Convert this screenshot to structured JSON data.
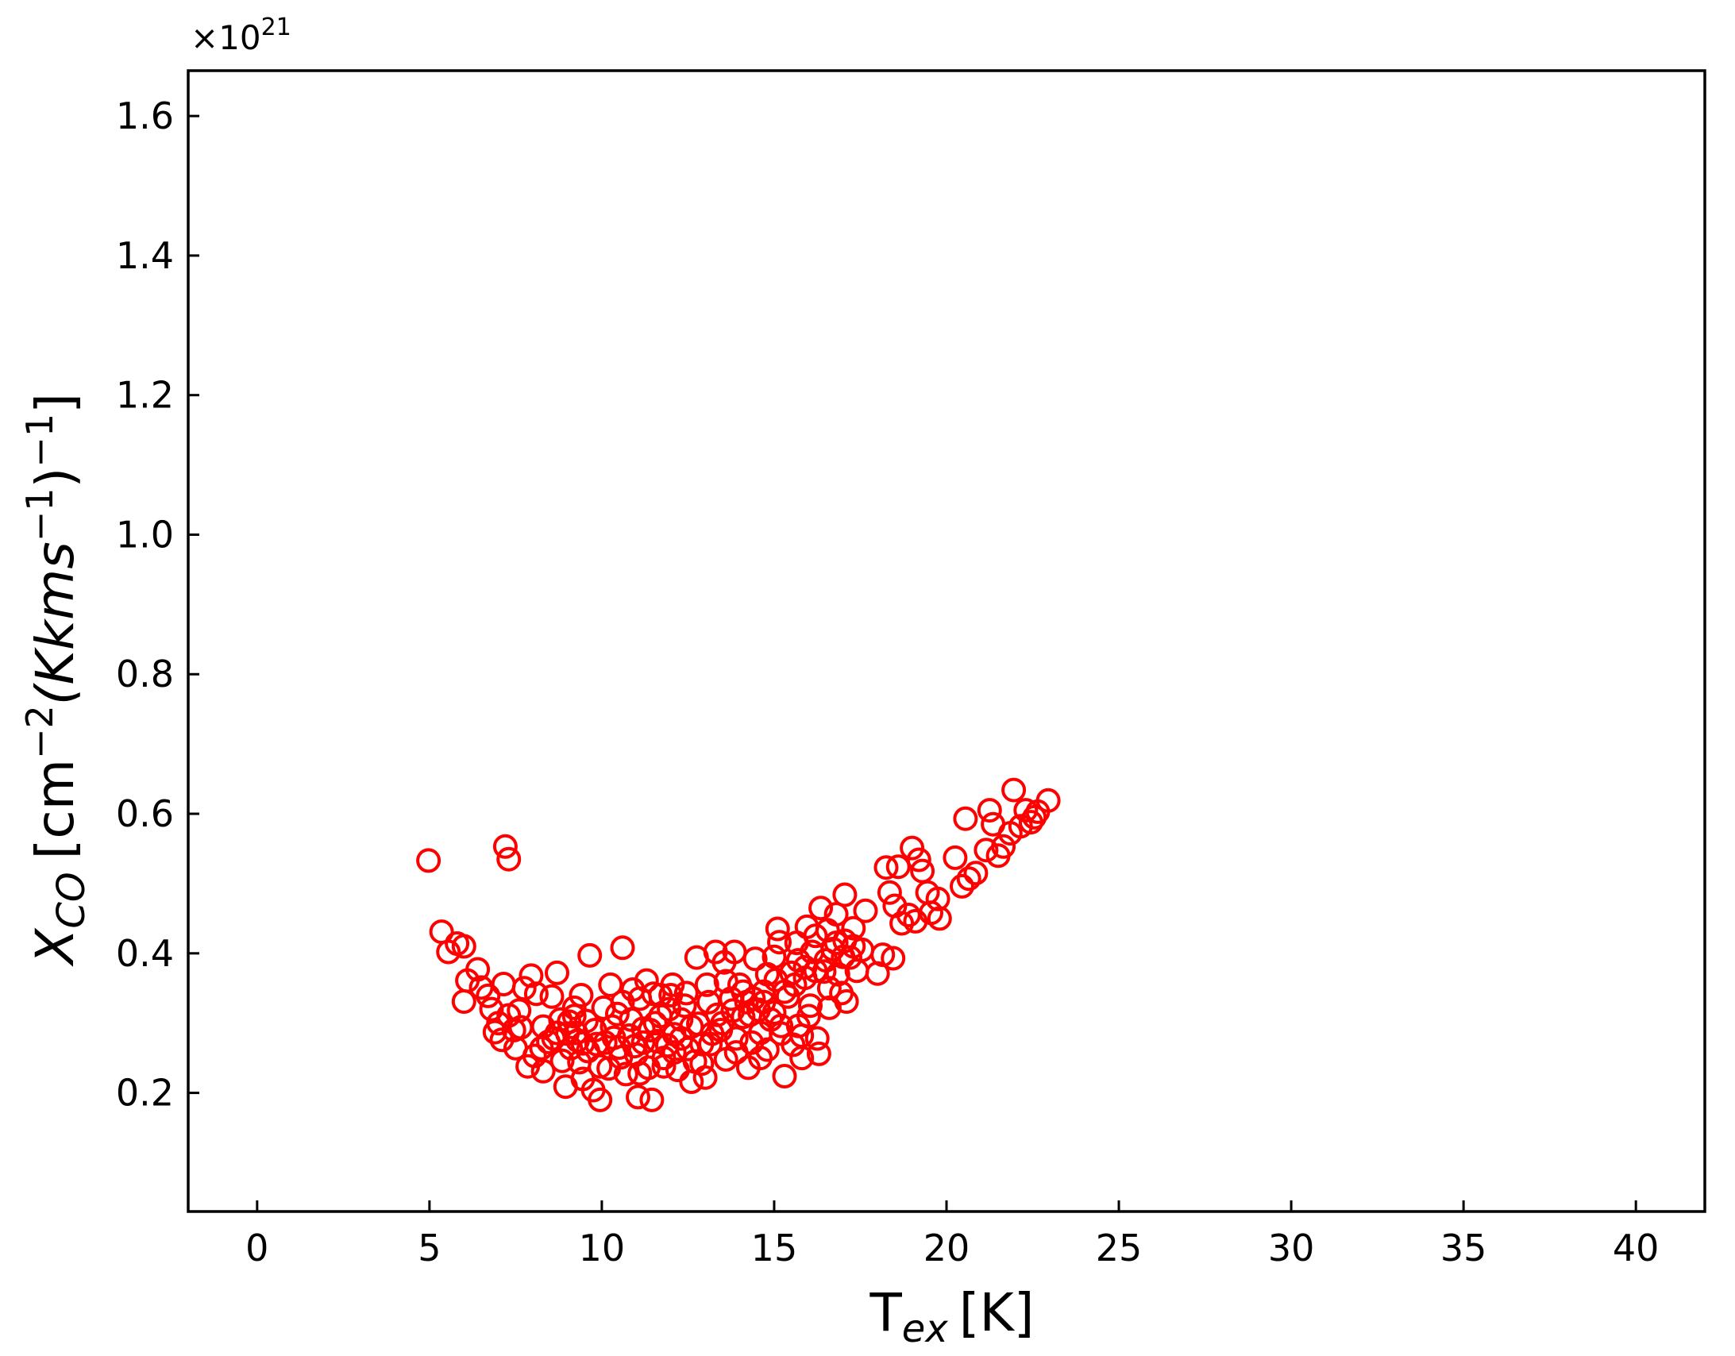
{
  "chart_data": {
    "type": "scatter",
    "title": "",
    "xlabel": "T",
    "xlabel_sub": "ex",
    "xlabel_unit": "[K]",
    "ylabel": "X",
    "ylabel_sub": "CO",
    "ylabel_unit_parts": [
      "[cm",
      "−2",
      "(Kkms",
      "−1",
      ")",
      "−1",
      "]"
    ],
    "y_offset_text": "×10",
    "y_offset_exp": "21",
    "xlim": [
      -2,
      42
    ],
    "ylim": [
      0.03,
      1.665
    ],
    "y_scale": 1e+21,
    "xticks": [
      0,
      5,
      10,
      15,
      20,
      25,
      30,
      35,
      40
    ],
    "xtick_labels": [
      "0",
      "5",
      "10",
      "15",
      "20",
      "25",
      "30",
      "35",
      "40"
    ],
    "yticks": [
      0.2,
      0.4,
      0.6,
      0.8,
      1.0,
      1.2,
      1.4,
      1.6
    ],
    "ytick_labels": [
      "0.2",
      "0.4",
      "0.6",
      "0.8",
      "1.0",
      "1.2",
      "1.4",
      "1.6"
    ],
    "grid": false,
    "marker": "open-circle",
    "marker_color": "#ff0000",
    "series": [
      {
        "points": [
          [
            4.97,
            0.533
          ],
          [
            7.2,
            0.553
          ],
          [
            7.3,
            0.535
          ],
          [
            5.35,
            0.431
          ],
          [
            5.55,
            0.402
          ],
          [
            5.8,
            0.414
          ],
          [
            6.0,
            0.41
          ],
          [
            6.1,
            0.361
          ],
          [
            6.0,
            0.331
          ],
          [
            6.4,
            0.377
          ],
          [
            6.5,
            0.351
          ],
          [
            6.7,
            0.339
          ],
          [
            6.9,
            0.287
          ],
          [
            7.1,
            0.276
          ],
          [
            7.15,
            0.356
          ],
          [
            7.3,
            0.311
          ],
          [
            7.45,
            0.29
          ],
          [
            7.5,
            0.264
          ],
          [
            7.65,
            0.294
          ],
          [
            7.75,
            0.35
          ],
          [
            7.95,
            0.368
          ],
          [
            7.85,
            0.238
          ],
          [
            8.05,
            0.253
          ],
          [
            8.25,
            0.264
          ],
          [
            8.3,
            0.231
          ],
          [
            8.45,
            0.273
          ],
          [
            8.55,
            0.338
          ],
          [
            8.7,
            0.372
          ],
          [
            8.7,
            0.286
          ],
          [
            8.85,
            0.246
          ],
          [
            8.95,
            0.209
          ],
          [
            9.05,
            0.302
          ],
          [
            9.1,
            0.264
          ],
          [
            9.2,
            0.322
          ],
          [
            9.25,
            0.286
          ],
          [
            9.35,
            0.244
          ],
          [
            9.45,
            0.271
          ],
          [
            9.45,
            0.22
          ],
          [
            9.55,
            0.303
          ],
          [
            9.65,
            0.397
          ],
          [
            9.75,
            0.204
          ],
          [
            9.85,
            0.27
          ],
          [
            9.95,
            0.238
          ],
          [
            9.95,
            0.19
          ],
          [
            10.05,
            0.322
          ],
          [
            10.25,
            0.355
          ],
          [
            10.35,
            0.279
          ],
          [
            10.45,
            0.313
          ],
          [
            10.6,
            0.408
          ],
          [
            10.55,
            0.251
          ],
          [
            10.7,
            0.227
          ],
          [
            10.85,
            0.305
          ],
          [
            10.95,
            0.267
          ],
          [
            11.05,
            0.194
          ],
          [
            11.1,
            0.335
          ],
          [
            11.2,
            0.292
          ],
          [
            11.3,
            0.361
          ],
          [
            11.35,
            0.236
          ],
          [
            11.45,
            0.19
          ],
          [
            11.55,
            0.3
          ],
          [
            11.6,
            0.274
          ],
          [
            11.7,
            0.34
          ],
          [
            11.8,
            0.25
          ],
          [
            11.95,
            0.32
          ],
          [
            12.05,
            0.355
          ],
          [
            12.1,
            0.284
          ],
          [
            12.2,
            0.233
          ],
          [
            12.3,
            0.305
          ],
          [
            12.45,
            0.343
          ],
          [
            12.5,
            0.263
          ],
          [
            12.6,
            0.216
          ],
          [
            12.75,
            0.394
          ],
          [
            12.8,
            0.299
          ],
          [
            12.9,
            0.242
          ],
          [
            13.0,
            0.222
          ],
          [
            13.05,
            0.355
          ],
          [
            13.15,
            0.27
          ],
          [
            13.3,
            0.402
          ],
          [
            13.35,
            0.312
          ],
          [
            13.45,
            0.29
          ],
          [
            13.55,
            0.387
          ],
          [
            13.6,
            0.248
          ],
          [
            13.75,
            0.335
          ],
          [
            13.85,
            0.402
          ],
          [
            13.9,
            0.278
          ],
          [
            14.0,
            0.355
          ],
          [
            14.1,
            0.309
          ],
          [
            14.2,
            0.33
          ],
          [
            14.25,
            0.236
          ],
          [
            14.35,
            0.272
          ],
          [
            14.45,
            0.392
          ],
          [
            14.55,
            0.319
          ],
          [
            14.6,
            0.286
          ],
          [
            14.7,
            0.345
          ],
          [
            14.8,
            0.262
          ],
          [
            14.9,
            0.305
          ],
          [
            15.0,
            0.395
          ],
          [
            15.05,
            0.362
          ],
          [
            15.1,
            0.435
          ],
          [
            15.15,
            0.416
          ],
          [
            15.2,
            0.296
          ],
          [
            15.3,
            0.224
          ],
          [
            15.4,
            0.338
          ],
          [
            15.5,
            0.372
          ],
          [
            15.55,
            0.269
          ],
          [
            15.65,
            0.415
          ],
          [
            15.7,
            0.296
          ],
          [
            15.8,
            0.25
          ],
          [
            15.9,
            0.38
          ],
          [
            15.95,
            0.438
          ],
          [
            16.05,
            0.325
          ],
          [
            16.1,
            0.402
          ],
          [
            16.2,
            0.425
          ],
          [
            16.25,
            0.278
          ],
          [
            16.3,
            0.256
          ],
          [
            16.35,
            0.465
          ],
          [
            16.45,
            0.374
          ],
          [
            16.55,
            0.433
          ],
          [
            16.6,
            0.322
          ],
          [
            16.7,
            0.406
          ],
          [
            16.8,
            0.456
          ],
          [
            16.85,
            0.37
          ],
          [
            16.95,
            0.343
          ],
          [
            17.05,
            0.484
          ],
          [
            17.05,
            0.418
          ],
          [
            17.1,
            0.331
          ],
          [
            17.2,
            0.394
          ],
          [
            17.3,
            0.436
          ],
          [
            17.4,
            0.375
          ],
          [
            17.55,
            0.405
          ],
          [
            17.65,
            0.461
          ],
          [
            18.0,
            0.371
          ],
          [
            18.15,
            0.398
          ],
          [
            18.25,
            0.523
          ],
          [
            18.35,
            0.487
          ],
          [
            18.45,
            0.393
          ],
          [
            18.5,
            0.468
          ],
          [
            18.6,
            0.524
          ],
          [
            18.7,
            0.443
          ],
          [
            18.9,
            0.455
          ],
          [
            19.0,
            0.551
          ],
          [
            19.1,
            0.446
          ],
          [
            19.2,
            0.534
          ],
          [
            19.3,
            0.518
          ],
          [
            19.45,
            0.487
          ],
          [
            19.55,
            0.458
          ],
          [
            19.75,
            0.478
          ],
          [
            19.8,
            0.45
          ],
          [
            20.25,
            0.537
          ],
          [
            20.45,
            0.496
          ],
          [
            20.55,
            0.593
          ],
          [
            20.65,
            0.507
          ],
          [
            20.85,
            0.515
          ],
          [
            21.15,
            0.548
          ],
          [
            21.25,
            0.605
          ],
          [
            21.35,
            0.585
          ],
          [
            21.5,
            0.54
          ],
          [
            21.65,
            0.553
          ],
          [
            21.85,
            0.572
          ],
          [
            21.95,
            0.634
          ],
          [
            22.15,
            0.582
          ],
          [
            22.3,
            0.605
          ],
          [
            22.45,
            0.588
          ],
          [
            22.55,
            0.595
          ],
          [
            22.65,
            0.603
          ],
          [
            22.95,
            0.619
          ],
          [
            8.3,
            0.295
          ],
          [
            8.6,
            0.278
          ],
          [
            8.8,
            0.305
          ],
          [
            9.0,
            0.285
          ],
          [
            9.3,
            0.275
          ],
          [
            9.6,
            0.26
          ],
          [
            9.8,
            0.29
          ],
          [
            10.1,
            0.272
          ],
          [
            10.3,
            0.295
          ],
          [
            10.5,
            0.265
          ],
          [
            10.8,
            0.282
          ],
          [
            11.0,
            0.255
          ],
          [
            11.2,
            0.272
          ],
          [
            11.4,
            0.29
          ],
          [
            11.7,
            0.31
          ],
          [
            11.9,
            0.268
          ],
          [
            12.1,
            0.258
          ],
          [
            12.3,
            0.278
          ],
          [
            12.6,
            0.295
          ],
          [
            12.9,
            0.27
          ],
          [
            13.2,
            0.285
          ],
          [
            13.5,
            0.3
          ],
          [
            13.8,
            0.318
          ],
          [
            14.1,
            0.345
          ],
          [
            14.4,
            0.335
          ],
          [
            14.7,
            0.33
          ],
          [
            15.0,
            0.315
          ],
          [
            15.3,
            0.345
          ],
          [
            15.6,
            0.355
          ],
          [
            15.9,
            0.365
          ],
          [
            16.2,
            0.375
          ],
          [
            16.5,
            0.39
          ],
          [
            16.8,
            0.415
          ],
          [
            17.0,
            0.395
          ],
          [
            9.2,
            0.31
          ],
          [
            10.6,
            0.33
          ],
          [
            11.5,
            0.342
          ],
          [
            12.4,
            0.325
          ],
          [
            13.6,
            0.36
          ],
          [
            14.8,
            0.37
          ],
          [
            15.7,
            0.39
          ],
          [
            7.6,
            0.318
          ],
          [
            8.1,
            0.342
          ],
          [
            9.4,
            0.34
          ],
          [
            10.9,
            0.348
          ],
          [
            12.0,
            0.34
          ],
          [
            13.1,
            0.33
          ],
          [
            14.3,
            0.312
          ],
          [
            15.2,
            0.285
          ],
          [
            16.0,
            0.31
          ],
          [
            16.6,
            0.35
          ],
          [
            17.3,
            0.41
          ],
          [
            6.8,
            0.32
          ],
          [
            7.0,
            0.3
          ],
          [
            11.1,
            0.228
          ],
          [
            12.7,
            0.245
          ],
          [
            13.9,
            0.258
          ],
          [
            14.6,
            0.25
          ],
          [
            15.8,
            0.282
          ],
          [
            10.2,
            0.235
          ],
          [
            11.8,
            0.238
          ]
        ]
      }
    ]
  }
}
